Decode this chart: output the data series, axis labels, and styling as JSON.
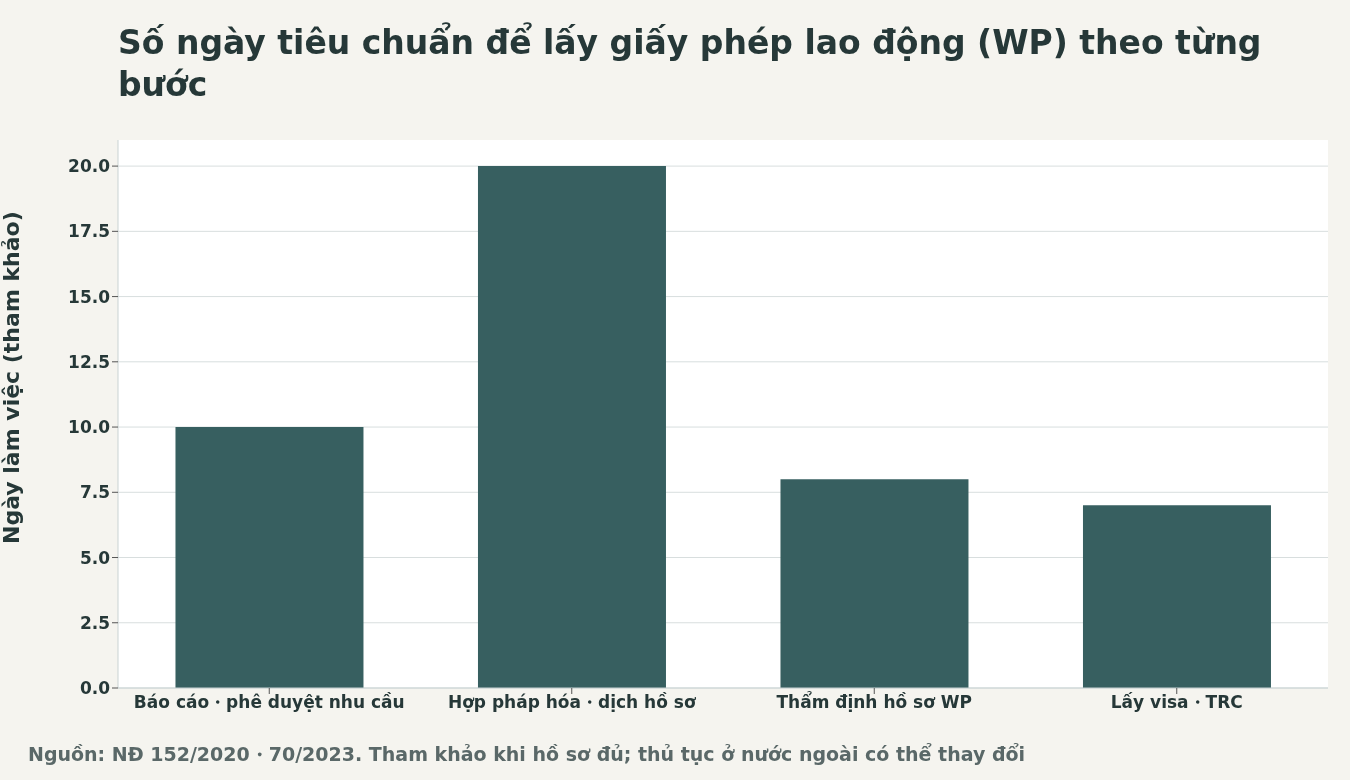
{
  "chart_data": {
    "type": "bar",
    "title": "Số ngày tiêu chuẩn để lấy giấy phép lao động (WP) theo từng bước",
    "ylabel": "Ngày làm việc (tham khảo)",
    "categories": [
      "Báo cáo・phê duyệt nhu cầu",
      "Hợp pháp hóa・dịch hồ sơ",
      "Thẩm định hồ sơ WP",
      "Lấy visa・TRC"
    ],
    "values": [
      10,
      20,
      8,
      7
    ],
    "color": "#375f60",
    "ylim": [
      0,
      21
    ],
    "yticks": [
      {
        "value": 0,
        "label": "0.0"
      },
      {
        "value": 2.5,
        "label": "2.5"
      },
      {
        "value": 5,
        "label": "5.0"
      },
      {
        "value": 7.5,
        "label": "7.5"
      },
      {
        "value": 10,
        "label": "10.0"
      },
      {
        "value": 12.5,
        "label": "12.5"
      },
      {
        "value": 15,
        "label": "15.0"
      },
      {
        "value": 17.5,
        "label": "17.5"
      },
      {
        "value": 20,
        "label": "20.0"
      }
    ],
    "grid": "y",
    "annotations": [
      "Nguồn: NĐ 152/2020・70/2023. Tham khảo khi hồ sơ đủ; thủ tục ở nước ngoài có thể thay đổi"
    ]
  }
}
